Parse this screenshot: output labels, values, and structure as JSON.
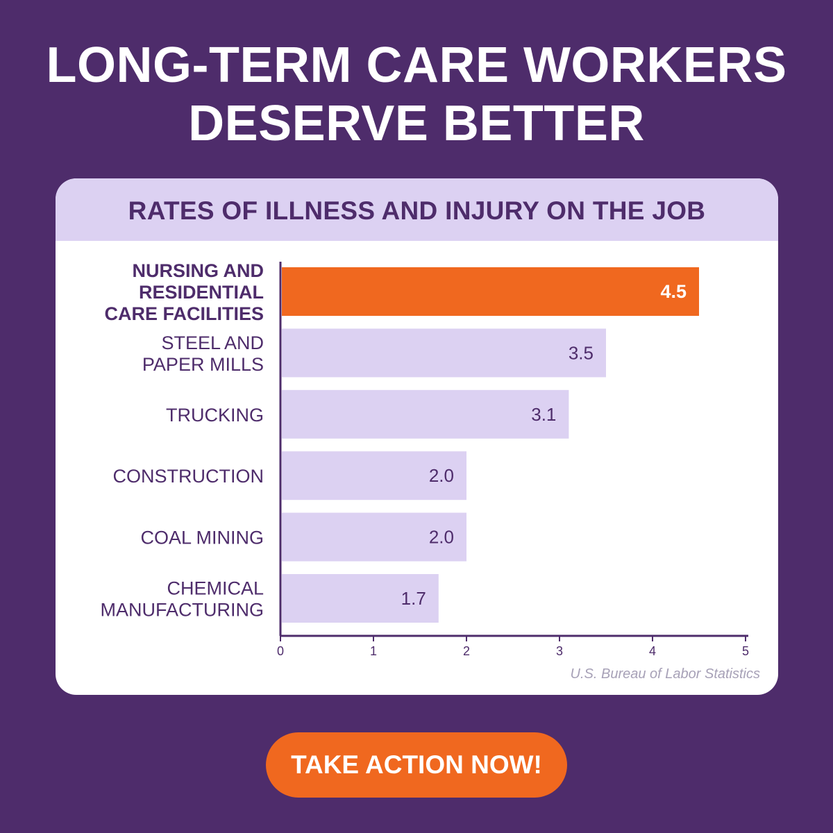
{
  "headline": {
    "line1": "LONG-TERM CARE WORKERS",
    "line2": "DESERVE BETTER"
  },
  "source": "U.S. Bureau of Labor Statistics",
  "cta_label": "TAKE ACTION NOW!",
  "colors": {
    "background": "#4e2c6b",
    "highlight_bar": "#f0681f",
    "bar": "#dcd1f2",
    "text": "#4e2c6b",
    "header_band": "#dcd1f2"
  },
  "chart_data": {
    "type": "bar",
    "orientation": "horizontal",
    "title": "RATES OF ILLNESS AND INJURY ON THE JOB",
    "categories": [
      [
        "NURSING AND",
        "RESIDENTIAL",
        "CARE FACILITIES"
      ],
      [
        "STEEL AND",
        "PAPER MILLS"
      ],
      [
        "TRUCKING"
      ],
      [
        "CONSTRUCTION"
      ],
      [
        "COAL MINING"
      ],
      [
        "CHEMICAL",
        "MANUFACTURING"
      ]
    ],
    "values": [
      4.5,
      3.5,
      3.1,
      2.0,
      2.0,
      1.7
    ],
    "value_labels": [
      "4.5",
      "3.5",
      "3.1",
      "2.0",
      "2.0",
      "1.7"
    ],
    "highlight_index": 0,
    "xlim": [
      0,
      5
    ],
    "xticks": [
      0,
      1,
      2,
      3,
      4,
      5
    ],
    "xlabel": "",
    "ylabel": "",
    "grid": false,
    "legend": "none"
  }
}
